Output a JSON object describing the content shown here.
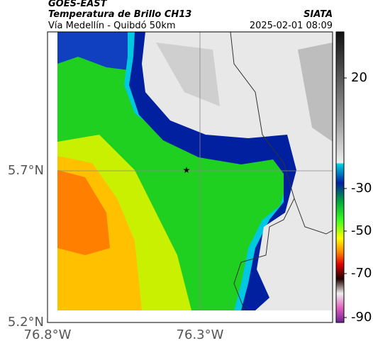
{
  "header": {
    "title": "GOES-EAST",
    "subtitle": "Temperatura de Brillo CH13",
    "source": "SIATA",
    "region": "Vía Medellín - Quibdó 50km",
    "datetime": "2025-02-01 08:09"
  },
  "axes": {
    "yticks": [
      "5.7°N",
      "5.2°N"
    ],
    "xticks": [
      "76.8°W",
      "76.3°W"
    ]
  },
  "colorbar": {
    "ticks": [
      20,
      -30,
      -50,
      -70,
      -90
    ]
  }
}
